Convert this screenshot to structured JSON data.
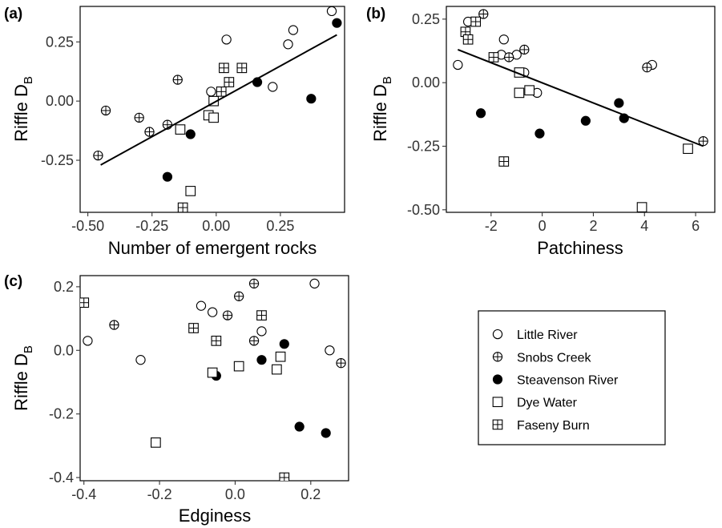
{
  "legend": {
    "position": "bottom-right",
    "entries": [
      {
        "label": "Little River",
        "marker": "open-circle"
      },
      {
        "label": "Snobs Creek",
        "marker": "crossed-circle"
      },
      {
        "label": "Steavenson River",
        "marker": "filled-circle"
      },
      {
        "label": "Dye Water",
        "marker": "open-square"
      },
      {
        "label": "Faseny Burn",
        "marker": "crossed-square"
      }
    ]
  },
  "chart_data": [
    {
      "panel": "(a)",
      "type": "scatter",
      "xlabel": "Number of emergent rocks",
      "ylabel_main": "Riffle D",
      "ylabel_sub": "B",
      "xlim": [
        -0.53,
        0.5
      ],
      "ylim": [
        -0.47,
        0.4
      ],
      "xticks": [
        -0.5,
        -0.25,
        0,
        0.25
      ],
      "xtick_labels": [
        "-0.50",
        "-0.25",
        "0.00",
        "0.25"
      ],
      "yticks": [
        -0.25,
        0,
        0.25
      ],
      "ytick_labels": [
        "-0.25",
        "0.00",
        "0.25"
      ],
      "grid": false,
      "trendline": {
        "x": [
          -0.45,
          0.47
        ],
        "y": [
          -0.27,
          0.28
        ]
      },
      "series": [
        {
          "name": "Little River",
          "points": [
            [
              0.45,
              0.38
            ],
            [
              0.3,
              0.3
            ],
            [
              0.28,
              0.24
            ],
            [
              0.04,
              0.26
            ],
            [
              0.22,
              0.06
            ],
            [
              -0.02,
              0.04
            ],
            [
              -0.03,
              -0.06
            ]
          ]
        },
        {
          "name": "Snobs Creek",
          "points": [
            [
              -0.46,
              -0.23
            ],
            [
              -0.43,
              -0.04
            ],
            [
              -0.3,
              -0.07
            ],
            [
              -0.26,
              -0.13
            ],
            [
              -0.19,
              -0.1
            ],
            [
              -0.15,
              0.09
            ]
          ]
        },
        {
          "name": "Steavenson River",
          "points": [
            [
              0.47,
              0.33
            ],
            [
              0.16,
              0.08
            ],
            [
              0.37,
              0.01
            ],
            [
              -0.1,
              -0.14
            ],
            [
              -0.19,
              -0.32
            ]
          ]
        },
        {
          "name": "Dye Water",
          "points": [
            [
              -0.14,
              -0.12
            ],
            [
              -0.03,
              -0.06
            ],
            [
              -0.01,
              -0.07
            ],
            [
              -0.01,
              0.0
            ],
            [
              -0.1,
              -0.38
            ]
          ]
        },
        {
          "name": "Faseny Burn",
          "points": [
            [
              0.03,
              0.14
            ],
            [
              0.1,
              0.14
            ],
            [
              0.05,
              0.08
            ],
            [
              0.02,
              0.04
            ],
            [
              -0.13,
              -0.45
            ]
          ]
        }
      ]
    },
    {
      "panel": "(b)",
      "type": "scatter",
      "xlabel": "Patchiness",
      "ylabel_main": "Riffle D",
      "ylabel_sub": "B",
      "xlim": [
        -3.75,
        6.75
      ],
      "ylim": [
        -0.51,
        0.3
      ],
      "xticks": [
        -2,
        0,
        2,
        4,
        6
      ],
      "xtick_labels": [
        "-2",
        "0",
        "2",
        "4",
        "6"
      ],
      "yticks": [
        -0.5,
        -0.25,
        0,
        0.25
      ],
      "ytick_labels": [
        "-0.50",
        "-0.25",
        "0.00",
        "0.25"
      ],
      "grid": false,
      "trendline": {
        "x": [
          -3.3,
          6.3
        ],
        "y": [
          0.13,
          -0.25
        ]
      },
      "series": [
        {
          "name": "Little River",
          "points": [
            [
              -3.3,
              0.07
            ],
            [
              -2.9,
              0.24
            ],
            [
              -1.5,
              0.17
            ],
            [
              -1.6,
              0.11
            ],
            [
              -1.0,
              0.11
            ],
            [
              -0.7,
              0.04
            ],
            [
              -0.2,
              -0.04
            ],
            [
              4.3,
              0.07
            ]
          ]
        },
        {
          "name": "Snobs Creek",
          "points": [
            [
              -2.3,
              0.27
            ],
            [
              -0.7,
              0.13
            ],
            [
              -1.3,
              0.1
            ],
            [
              4.1,
              0.06
            ],
            [
              6.3,
              -0.23
            ]
          ]
        },
        {
          "name": "Steavenson River",
          "points": [
            [
              -2.4,
              -0.12
            ],
            [
              -0.1,
              -0.2
            ],
            [
              1.7,
              -0.15
            ],
            [
              3.0,
              -0.08
            ],
            [
              3.2,
              -0.14
            ]
          ]
        },
        {
          "name": "Dye Water",
          "points": [
            [
              -0.9,
              0.04
            ],
            [
              -0.9,
              -0.04
            ],
            [
              -0.5,
              -0.03
            ],
            [
              5.7,
              -0.26
            ],
            [
              3.9,
              -0.49
            ]
          ]
        },
        {
          "name": "Faseny Burn",
          "points": [
            [
              -3.0,
              0.2
            ],
            [
              -2.9,
              0.17
            ],
            [
              -2.6,
              0.24
            ],
            [
              -1.9,
              0.1
            ],
            [
              -1.5,
              -0.31
            ]
          ]
        }
      ]
    },
    {
      "panel": "(c)",
      "type": "scatter",
      "xlabel": "Edginess",
      "ylabel_main": "Riffle D",
      "ylabel_sub": "B",
      "xlim": [
        -0.41,
        0.3
      ],
      "ylim": [
        -0.41,
        0.235
      ],
      "xticks": [
        -0.4,
        -0.2,
        0,
        0.2
      ],
      "xtick_labels": [
        "-0.4",
        "-0.2",
        "0.0",
        "0.2"
      ],
      "yticks": [
        -0.4,
        -0.2,
        0,
        0.2
      ],
      "ytick_labels": [
        "-0.4",
        "-0.2",
        "0.0",
        "0.2"
      ],
      "grid": false,
      "series": [
        {
          "name": "Little River",
          "points": [
            [
              -0.39,
              0.03
            ],
            [
              -0.25,
              -0.03
            ],
            [
              -0.09,
              0.14
            ],
            [
              -0.06,
              0.12
            ],
            [
              0.07,
              0.06
            ],
            [
              0.21,
              0.21
            ],
            [
              0.25,
              0.0
            ]
          ]
        },
        {
          "name": "Snobs Creek",
          "points": [
            [
              -0.32,
              0.08
            ],
            [
              -0.02,
              0.11
            ],
            [
              0.01,
              0.17
            ],
            [
              0.05,
              0.21
            ],
            [
              0.05,
              0.03
            ],
            [
              0.28,
              -0.04
            ]
          ]
        },
        {
          "name": "Steavenson River",
          "points": [
            [
              -0.05,
              -0.08
            ],
            [
              0.07,
              -0.03
            ],
            [
              0.13,
              0.02
            ],
            [
              0.17,
              -0.24
            ],
            [
              0.24,
              -0.26
            ]
          ]
        },
        {
          "name": "Dye Water",
          "points": [
            [
              -0.21,
              -0.29
            ],
            [
              -0.06,
              -0.07
            ],
            [
              0.01,
              -0.05
            ],
            [
              0.11,
              -0.06
            ],
            [
              0.12,
              -0.02
            ]
          ]
        },
        {
          "name": "Faseny Burn",
          "points": [
            [
              -0.4,
              0.15
            ],
            [
              -0.11,
              0.07
            ],
            [
              -0.05,
              0.03
            ],
            [
              0.07,
              0.11
            ],
            [
              0.13,
              -0.4
            ]
          ]
        }
      ]
    }
  ]
}
